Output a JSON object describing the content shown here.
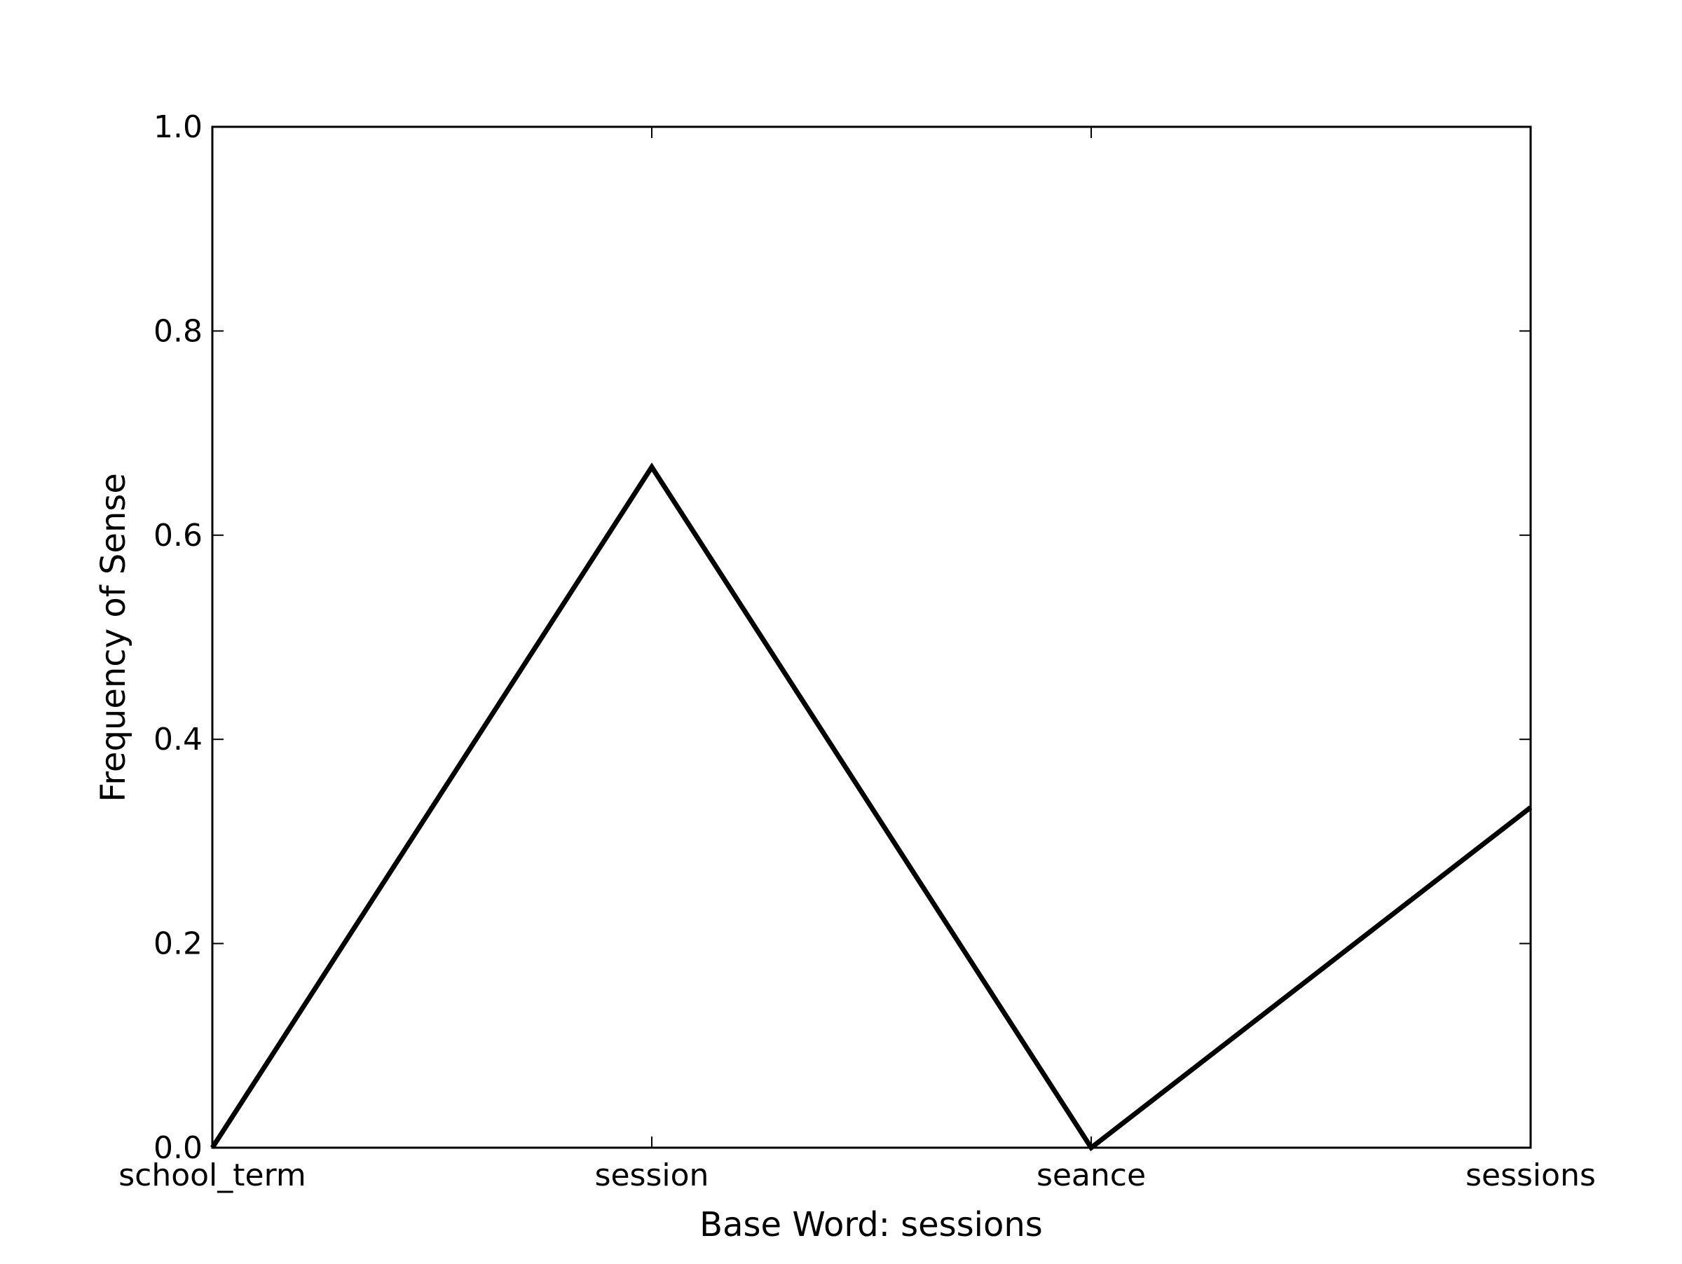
{
  "chart_data": {
    "type": "line",
    "title": "",
    "xlabel": "Base Word: sessions",
    "ylabel": "Frequency of Sense",
    "categories": [
      "school_term",
      "session",
      "seance",
      "sessions"
    ],
    "series": [
      {
        "values": [
          0.0,
          0.6667,
          0.0,
          0.3333
        ]
      }
    ],
    "ylim": [
      0.0,
      1.0
    ],
    "yticks": [
      "0.0",
      "0.2",
      "0.4",
      "0.6",
      "0.8",
      "1.0"
    ],
    "ytick_values": [
      0.0,
      0.2,
      0.4,
      0.6,
      0.8,
      1.0
    ],
    "grid": false,
    "legend": "none",
    "colors": {
      "line": "#000000",
      "axes": "#000000",
      "background": "#ffffff"
    }
  }
}
